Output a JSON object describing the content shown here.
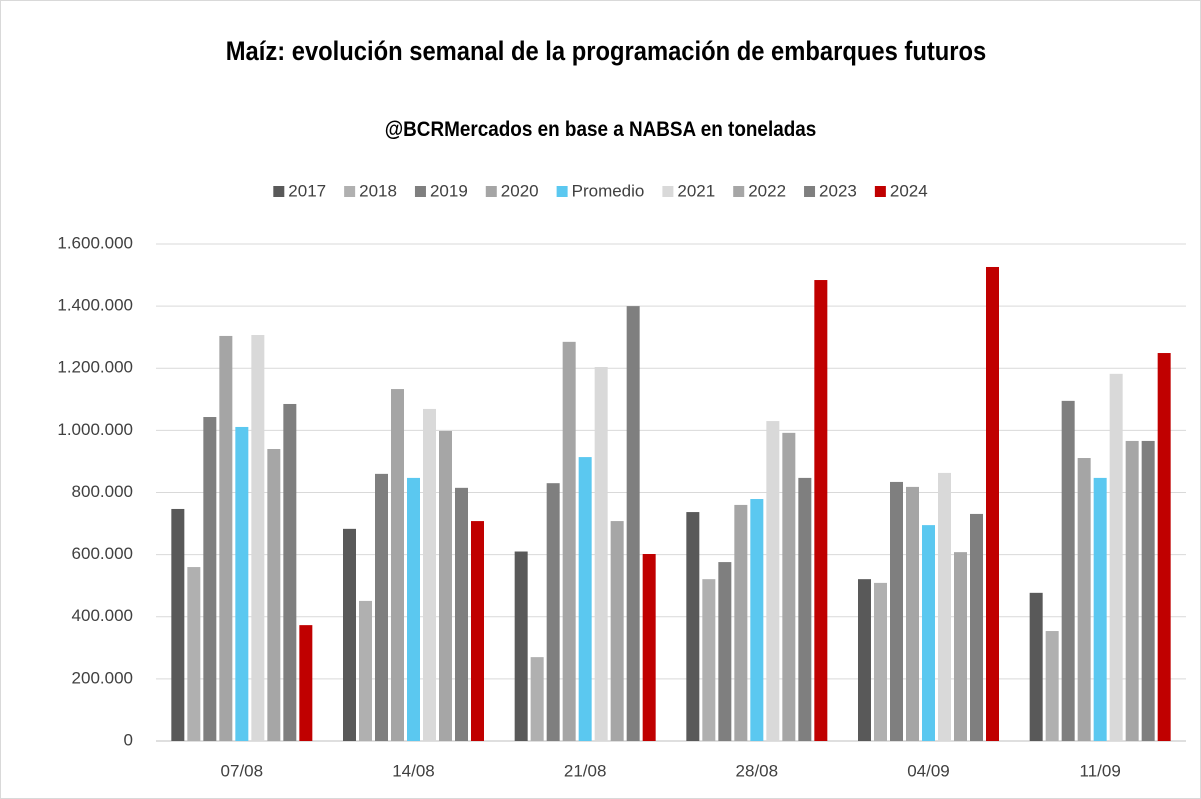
{
  "chart_data": {
    "type": "bar",
    "title": "Maíz: evolución semanal de la programación de embarques futuros",
    "subtitle": "@BCRMercados en base a NABSA en toneladas",
    "categories": [
      "07/08",
      "14/08",
      "21/08",
      "28/08",
      "04/09",
      "11/09"
    ],
    "series": [
      {
        "name": "2017",
        "color": "#595959",
        "values": [
          747000,
          683000,
          610000,
          737000,
          521000,
          477000
        ]
      },
      {
        "name": "2018",
        "color": "#b0b0b0",
        "values": [
          560000,
          451000,
          270000,
          521000,
          509000,
          354000
        ]
      },
      {
        "name": "2019",
        "color": "#7f7f7f",
        "values": [
          1043000,
          860000,
          830000,
          576000,
          834000,
          1095000
        ]
      },
      {
        "name": "2020",
        "color": "#a5a5a5",
        "values": [
          1304000,
          1133000,
          1285000,
          760000,
          818000,
          911000
        ]
      },
      {
        "name": "Promedio",
        "color": "#5bc8f0",
        "values": [
          1011000,
          847000,
          914000,
          779000,
          695000,
          847000
        ]
      },
      {
        "name": "2021",
        "color": "#d9d9d9",
        "values": [
          1307000,
          1069000,
          1204000,
          1030000,
          863000,
          1182000
        ]
      },
      {
        "name": "2022",
        "color": "#a6a6a6",
        "values": [
          940000,
          998000,
          708000,
          992000,
          608000,
          966000
        ]
      },
      {
        "name": "2023",
        "color": "#7f7f7f",
        "values": [
          1085000,
          815000,
          1400000,
          847000,
          731000,
          966000
        ]
      },
      {
        "name": "2024",
        "color": "#c00000",
        "values": [
          373000,
          708000,
          602000,
          1484000,
          1526000,
          1249000
        ]
      }
    ],
    "ylim": [
      0,
      1600000
    ],
    "yticks": [
      0,
      {
        "value": 200000,
        "label": "200.000"
      },
      {
        "value": 400000,
        "label": "400.000"
      },
      {
        "value": 600000,
        "label": "600.000"
      },
      {
        "value": 800000,
        "label": "800.000"
      },
      {
        "value": 1000000,
        "label": "1.000.000"
      },
      {
        "value": 1200000,
        "label": "1.200.000"
      },
      {
        "value": 1400000,
        "label": "1.400.000"
      },
      {
        "value": 1600000,
        "label": "1.600.000"
      }
    ],
    "grid": true,
    "legend": "top"
  }
}
